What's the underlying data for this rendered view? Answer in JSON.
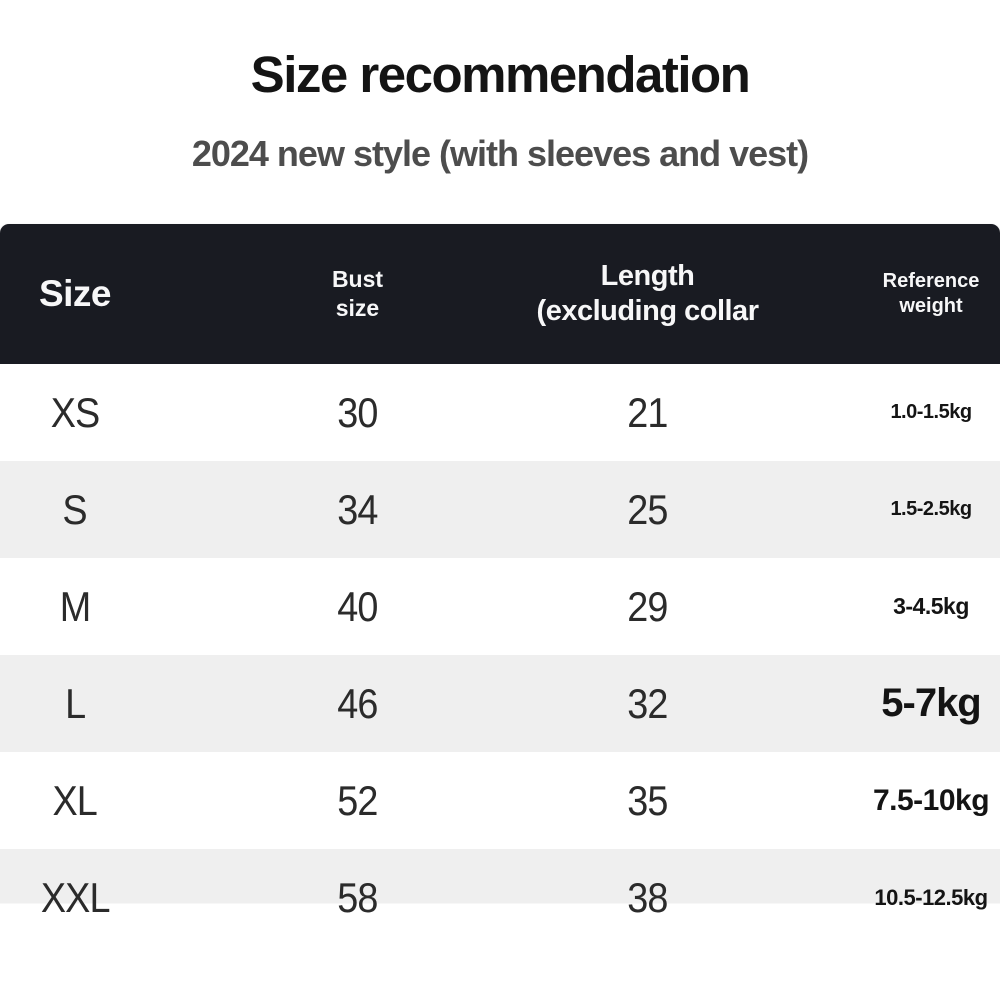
{
  "title": "Size recommendation",
  "subtitle": "2024 new style (with sleeves and vest)",
  "header": {
    "size": "Size",
    "bust_lines": [
      "Bust",
      "size"
    ],
    "length_lines": [
      "Length",
      "(excluding collar"
    ],
    "weight_lines": [
      "Reference",
      "weight"
    ]
  },
  "chart_data": {
    "type": "table",
    "title": "Size recommendation",
    "subtitle": "2024 new style (with sleeves and vest)",
    "columns": [
      "Size",
      "Bust size",
      "Length (excluding collar",
      "Reference weight"
    ],
    "rows": [
      [
        "XS",
        "30",
        "21",
        "1.0-1.5kg"
      ],
      [
        "S",
        "34",
        "25",
        "1.5-2.5kg"
      ],
      [
        "M",
        "40",
        "29",
        "3-4.5kg"
      ],
      [
        "L",
        "46",
        "32",
        "5-7kg"
      ],
      [
        "XL",
        "52",
        "35",
        "7.5-10kg"
      ],
      [
        "XXL",
        "58",
        "38",
        "10.5-12.5kg"
      ]
    ],
    "layout": {
      "header_style": "dark bar, white bold text",
      "row_striping": "white / light-gray alternating starting white",
      "emphasized_cells": [
        "5-7kg large bold",
        "7.5-10kg medium bold"
      ]
    }
  },
  "colors": {
    "header_bg": "#191b22",
    "header_text": "#f7f7f8",
    "stripe": "#efefef",
    "body_text": "#2b2b2b",
    "weight_text": "#141414",
    "title": "#141414",
    "subtitle": "#4d4d4d",
    "background": "#ffffff"
  }
}
